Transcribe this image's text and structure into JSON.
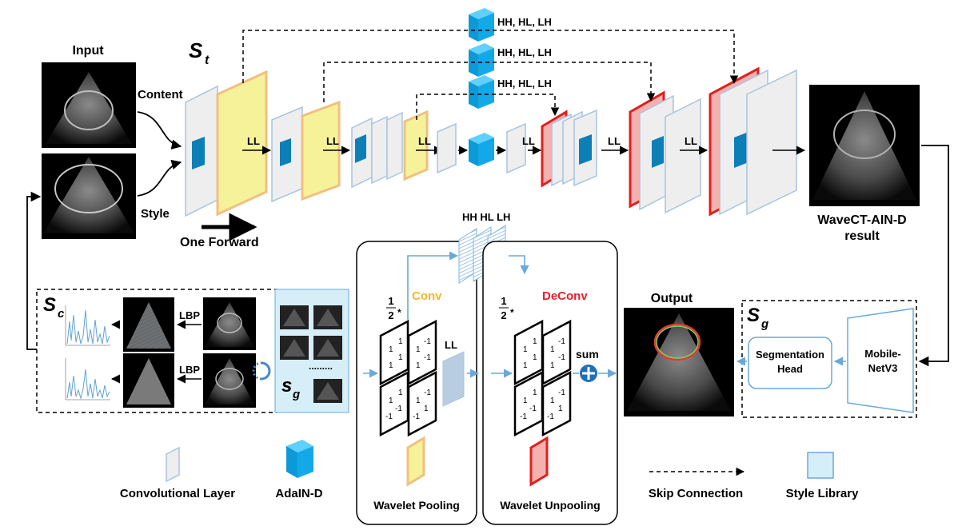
{
  "labels": {
    "input": "Input",
    "content": "Content",
    "style": "Style",
    "one_forward": "One Forward",
    "result_line1": "WaveCT-AIN-D",
    "result_line2": "result",
    "output": "Output",
    "hh_hl_lh": "HH, HL, LH",
    "ll": "LL",
    "hh_hl_lh_compact": "HH HL LH",
    "conv": "Conv",
    "deconv": "DeConv",
    "sum": "sum",
    "lbp": "LBP",
    "dots": ".........",
    "seg_head_line1": "Segmentation",
    "seg_head_line2": "Head",
    "mobilenet_line1": "Mobile-",
    "mobilenet_line2": "NetV3",
    "half_num": "1",
    "half_den": "2",
    "half_star": "*"
  },
  "symbols": {
    "s_t": {
      "base": "S",
      "sub": "t"
    },
    "s_c": {
      "base": "S",
      "sub": "c"
    },
    "s_g_library": {
      "base": "s",
      "sub": "g"
    },
    "s_g_seg": {
      "base": "S",
      "sub": "g"
    }
  },
  "legend": {
    "conv_layer": "Convolutional Layer",
    "adain": "AdaIN-D",
    "wavelet_pooling": "Wavelet Pooling",
    "wavelet_unpooling": "Wavelet Unpooling",
    "skip_connection": "Skip Connection",
    "style_library": "Style Library"
  },
  "colors": {
    "conv_layer_fill": "#eeeeee",
    "conv_layer_edge": "#a9c4e0",
    "adain_blue": "#13a9e8",
    "adain_dark": "#0b7fb6",
    "pool_yellow": "#f6f29a",
    "pool_edge": "#f0c080",
    "unpool_red": "#e0201c",
    "style_lib_fill": "#d5eef8",
    "conv_label": "#f2b824",
    "deconv_label": "#e8202a",
    "arrow_blue": "#6aa8dc",
    "sum_blue": "#1f6fb8",
    "hist_blue": "#5fa3d6"
  },
  "filters": {
    "pool_top": [
      [
        "1",
        "1"
      ],
      [
        "1",
        "1"
      ]
    ],
    "pool_right_top": [
      [
        "1",
        "-1"
      ],
      [
        "1",
        "-1"
      ]
    ],
    "pool_left_bottom": [
      [
        "1",
        "1"
      ],
      [
        "-1",
        "-1"
      ]
    ],
    "pool_right_bottom": [
      [
        "1",
        "-1"
      ],
      [
        "-1",
        "1"
      ]
    ]
  }
}
